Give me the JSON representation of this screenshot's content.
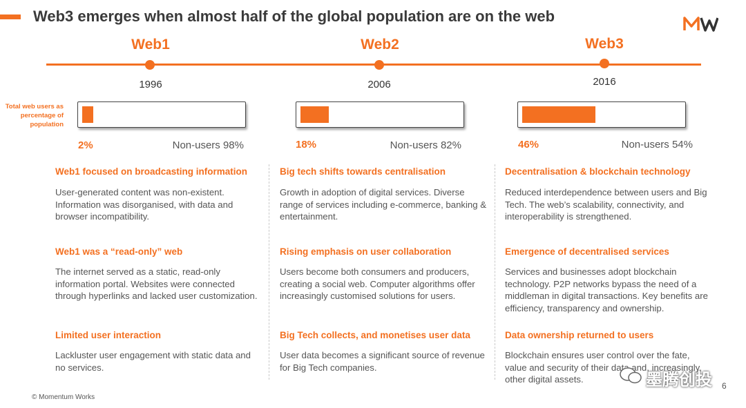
{
  "title": "Web3 emerges when almost half of the global population are on the web",
  "colors": {
    "accent": "#f37021",
    "text": "#444444"
  },
  "users_label": "Total web users as percentage of population",
  "eras": [
    {
      "name": "Web1",
      "year": "1996",
      "users_pct": "2%",
      "users_value": 2,
      "nonusers": "Non-users 98%",
      "sections": [
        {
          "heading": "Web1 focused on broadcasting information",
          "text": "User-generated content was non-existent. Information was disorganised, with data and browser incompatibility."
        },
        {
          "heading": "Web1 was a “read-only” web",
          "text": "The internet served as a static, read-only information portal. Websites were connected through hyperlinks and lacked user customization."
        },
        {
          "heading": "Limited user interaction",
          "text": "Lackluster user engagement with static data and no services."
        }
      ]
    },
    {
      "name": "Web2",
      "year": "2006",
      "users_pct": "18%",
      "users_value": 18,
      "nonusers": "Non-users 82%",
      "sections": [
        {
          "heading": "Big tech shifts towards centralisation",
          "text": "Growth in adoption of digital services. Diverse range of services including e-commerce, banking & entertainment."
        },
        {
          "heading": "Rising emphasis on user collaboration",
          "text": "Users become both consumers and producers, creating a social web. Computer algorithms offer increasingly customised solutions for users."
        },
        {
          "heading": "Big Tech collects, and monetises user data",
          "text": "User data becomes a significant source of revenue for Big Tech companies."
        }
      ]
    },
    {
      "name": "Web3",
      "year": "2016",
      "users_pct": "46%",
      "users_value": 46,
      "nonusers": "Non-users 54%",
      "sections": [
        {
          "heading": "Decentralisation & blockchain technology",
          "text": "Reduced interdependence between users and Big Tech. The web’s scalability, connectivity, and interoperability is strengthened."
        },
        {
          "heading": "Emergence of decentralised services",
          "text": "Services and businesses adopt blockchain technology. P2P networks bypass the need of a middleman in digital transactions. Key benefits are efficiency, transparency and ownership."
        },
        {
          "heading": "Data ownership returned to users",
          "text": "Blockchain ensures user control over the fate, value and security of their data and, increasingly, other digital assets."
        }
      ]
    }
  ],
  "footer": "© Momentum Works",
  "page_number": "6",
  "watermark": "墨腾创投"
}
